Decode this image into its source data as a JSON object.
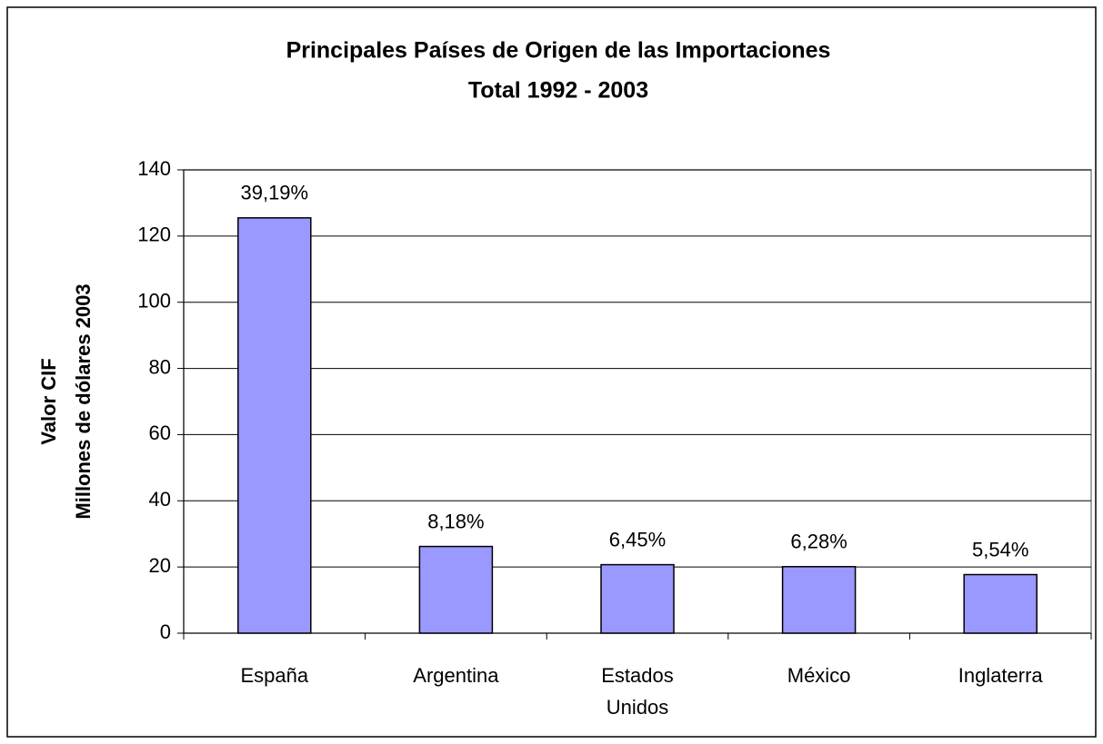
{
  "chart_data": {
    "type": "bar",
    "title": "Principales Países de Origen de las Importaciones",
    "subtitle": "Total 1992 - 2003",
    "ylabel": [
      "Valor CIF",
      "Millones de dólares 2003"
    ],
    "categories": [
      "España",
      "Argentina",
      "Estados Unidos",
      "México",
      "Inglaterra"
    ],
    "values": [
      125.5,
      26.2,
      20.7,
      20.1,
      17.7
    ],
    "share_labels": [
      "39,19%",
      "8,18%",
      "6,45%",
      "6,28%",
      "5,54%"
    ],
    "color": "#9999ff",
    "ylim": [
      0,
      140
    ],
    "yticks": [
      0,
      20,
      40,
      60,
      80,
      100,
      120,
      140
    ],
    "grid": true
  }
}
